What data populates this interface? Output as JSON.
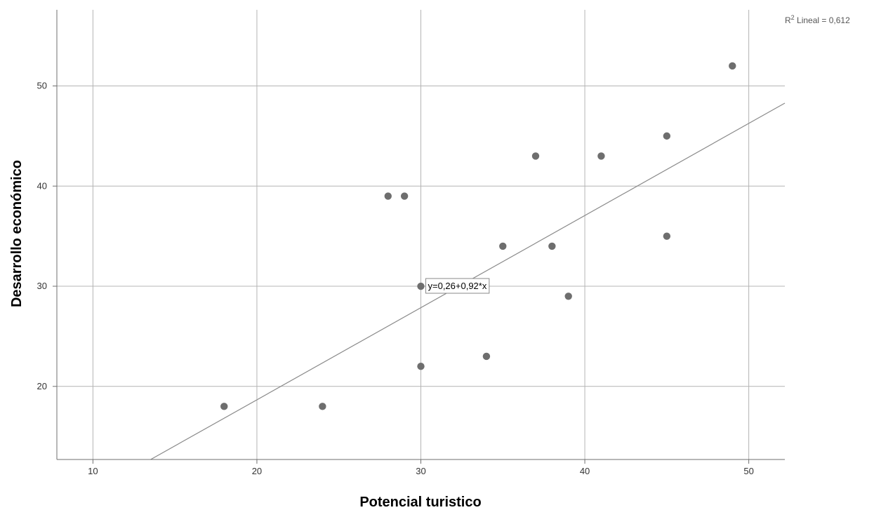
{
  "chart_data": {
    "type": "scatter",
    "xlabel": "Potencial turistico",
    "ylabel": "Desarrollo económico",
    "xlim": [
      7.8,
      52.2
    ],
    "ylim": [
      12.7,
      57.6
    ],
    "x_ticks": [
      "10",
      "20",
      "30",
      "40",
      "50"
    ],
    "y_ticks": [
      "20",
      "30",
      "40",
      "50"
    ],
    "grid": true,
    "points": [
      {
        "x": 18,
        "y": 18
      },
      {
        "x": 24,
        "y": 18
      },
      {
        "x": 28,
        "y": 39
      },
      {
        "x": 29,
        "y": 39
      },
      {
        "x": 30,
        "y": 30
      },
      {
        "x": 30,
        "y": 22
      },
      {
        "x": 34,
        "y": 23
      },
      {
        "x": 35,
        "y": 34
      },
      {
        "x": 37,
        "y": 43
      },
      {
        "x": 38,
        "y": 34
      },
      {
        "x": 39,
        "y": 29
      },
      {
        "x": 41,
        "y": 43
      },
      {
        "x": 45,
        "y": 45
      },
      {
        "x": 45,
        "y": 35
      },
      {
        "x": 49,
        "y": 52
      }
    ],
    "fit_line": {
      "intercept": 0.26,
      "slope": 0.92,
      "label": "y=0,26+0,92*x"
    },
    "r2": {
      "prefix": "R",
      "superscript": "2",
      "text": " Lineal = 0,612"
    },
    "colors": {
      "points": "#6e6e6e",
      "grid": "#b4b4b4",
      "axis": "#6f6f6f",
      "fit_line": "#8a8a8a",
      "label_border": "#8a8a8a"
    }
  }
}
